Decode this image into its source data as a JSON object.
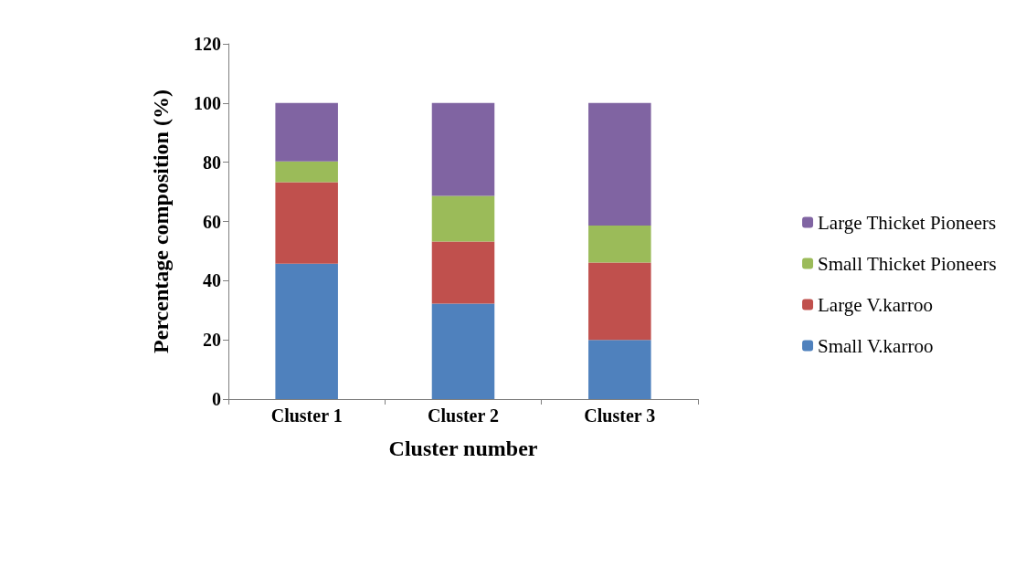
{
  "chart_data": {
    "type": "bar",
    "stacked": true,
    "xlabel": "Cluster number",
    "ylabel": "Percentage composition (%)",
    "categories": [
      "Cluster 1",
      "Cluster 2",
      "Cluster 3"
    ],
    "series": [
      {
        "name": "Small V.karroo",
        "color": "#4f81bd",
        "values": [
          45.7,
          32.2,
          20.0
        ]
      },
      {
        "name": "Large V.karroo",
        "color": "#c0504d",
        "values": [
          27.6,
          21.0,
          26.1
        ]
      },
      {
        "name": "Small Thicket Pioneers",
        "color": "#9bbb59",
        "values": [
          7.0,
          15.4,
          12.5
        ]
      },
      {
        "name": "Large Thicket Pioneers",
        "color": "#8064a2",
        "values": [
          19.7,
          31.4,
          41.4
        ]
      }
    ],
    "ylim": [
      0,
      120
    ],
    "yticks": [
      0,
      20,
      40,
      60,
      80,
      100,
      120
    ],
    "grid": false,
    "legend": "right"
  }
}
